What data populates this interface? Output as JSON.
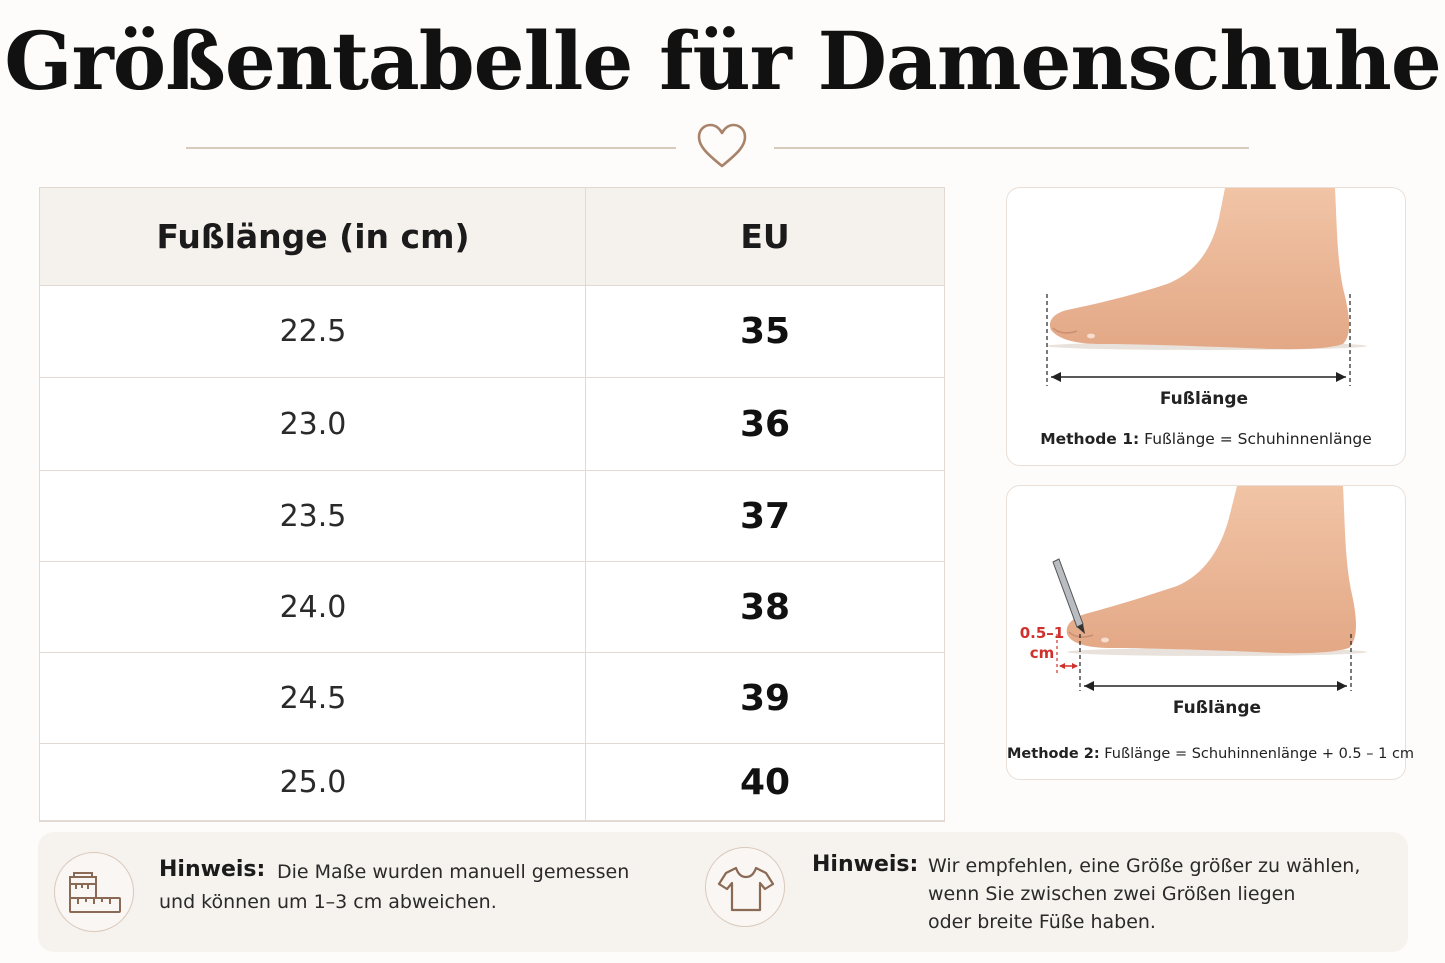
{
  "title": "Größentabelle für Damenschuhe",
  "colors": {
    "accent_line": "#d8cbbd",
    "heart": "#a9826a",
    "tolerance": "#d0312d",
    "header_bg": "#f5f1ec"
  },
  "table": {
    "headers": {
      "length": "Fußlänge (in cm)",
      "eu": "EU"
    },
    "rows": [
      {
        "length": "22.5",
        "eu": "35"
      },
      {
        "length": "23.0",
        "eu": "36"
      },
      {
        "length": "23.5",
        "eu": "37"
      },
      {
        "length": "24.0",
        "eu": "38"
      },
      {
        "length": "24.5",
        "eu": "39"
      },
      {
        "length": "25.0",
        "eu": "40"
      }
    ]
  },
  "method1": {
    "measure_label": "Fußlänge",
    "title": "Methode 1:",
    "text": "Fußlänge = Schuhinnenlänge"
  },
  "method2": {
    "measure_label": "Fußlänge",
    "tolerance_value": "0.5–1",
    "tolerance_unit": "cm",
    "title": "Methode 2:",
    "text": "Fußlänge = Schuhinnenlänge + 0.5 – 1 cm"
  },
  "notes": [
    {
      "icon": "ruler-icon",
      "heading": "Hinweis:",
      "lines": [
        "Die Maße wurden manuell gemessen",
        "und können um 1–3 cm abweichen."
      ]
    },
    {
      "icon": "tshirt-icon",
      "heading": "Hinweis:",
      "lines": [
        "Wir empfehlen, eine Größe größer zu wählen,",
        "wenn Sie zwischen zwei Größen liegen",
        "oder breite Füße haben."
      ]
    }
  ]
}
